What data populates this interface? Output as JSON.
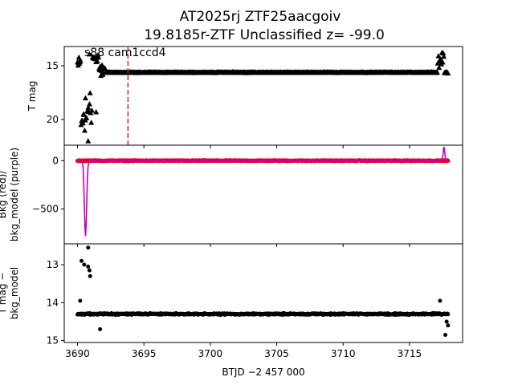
{
  "chart_data": {
    "type": "scatter",
    "title_line1": "AT2025rj  ZTF25aacgoiv",
    "title_line2": "19.8185r-ZTF Unclassified z= -99.0",
    "xlabel": "BTJD −2 457 000",
    "xlim": [
      3689.0,
      3719.0
    ],
    "xticks": [
      3690,
      3695,
      3700,
      3705,
      3710,
      3715
    ],
    "xtick_labels": [
      "3690",
      "3695",
      "3700",
      "3705",
      "3710",
      "3715"
    ],
    "vline_x": 3693.8,
    "vline_color": "#d62728",
    "panels": [
      {
        "id": "mag",
        "ylabel": "T mag",
        "ylim": [
          22.4,
          13.2
        ],
        "yticks": [
          15,
          20
        ],
        "ytick_labels": [
          "15",
          "20"
        ],
        "annotation": "s88 cam1ccd4",
        "series": [
          {
            "marker": "triangle",
            "color": "#000000",
            "x_start": 3690.0,
            "x_end": 3717.9,
            "n": 620,
            "noise": 0.05,
            "segments": [
              {
                "x0": 3690.0,
                "x1": 3690.25,
                "y": 14.6,
                "spread": 0.6
              },
              {
                "x0": 3690.25,
                "x1": 3690.6,
                "y": 20.0,
                "spread": 2.2
              },
              {
                "x0": 3690.6,
                "x1": 3691.1,
                "y": 19.5,
                "spread": 3.2
              },
              {
                "x0": 3691.1,
                "x1": 3691.6,
                "y": 14.2,
                "spread": 0.8
              },
              {
                "x0": 3691.6,
                "x1": 3692.1,
                "y": 15.3,
                "spread": 0.8
              },
              {
                "x0": 3692.1,
                "x1": 3717.1,
                "y": 15.6,
                "spread": 0.05
              },
              {
                "x0": 3717.1,
                "x1": 3717.6,
                "y": 14.3,
                "spread": 1.4
              },
              {
                "x0": 3717.6,
                "x1": 3717.9,
                "y": 15.6,
                "spread": 0.1
              }
            ]
          }
        ],
        "extra_points": [
          {
            "x": 3690.8,
            "y": 22.0
          },
          {
            "x": 3690.9,
            "y": 13.9
          },
          {
            "x": 3691.4,
            "y": 19.3
          },
          {
            "x": 3690.6,
            "y": 18.0
          },
          {
            "x": 3691.9,
            "y": 15.8
          },
          {
            "x": 3690.1,
            "y": 14.2
          }
        ]
      },
      {
        "id": "bkg",
        "ylabel_line1": "Bkg (red)/",
        "ylabel_line2": "bkg_model (purple)",
        "ylim": [
          -860,
          160
        ],
        "yticks": [
          0,
          -500
        ],
        "ytick_labels": [
          "0",
          "−500"
        ],
        "red_color": "#e8001c",
        "purple_color": "#bf00bf",
        "red_level": 0,
        "purple_dip": {
          "x": 3690.6,
          "y": -780
        },
        "purple_bump": {
          "x": 3717.6,
          "y": 150
        }
      },
      {
        "id": "diff",
        "ylabel_line1": "T mag −",
        "ylabel_line2": "bkg_model",
        "ylim": [
          15.05,
          12.45
        ],
        "yticks": [
          13,
          14,
          15
        ],
        "ytick_labels": [
          "13",
          "14",
          "15"
        ],
        "level": 14.3,
        "outliers": [
          {
            "x": 3690.3,
            "y": 12.9
          },
          {
            "x": 3690.5,
            "y": 13.0
          },
          {
            "x": 3690.8,
            "y": 12.55
          },
          {
            "x": 3690.9,
            "y": 13.15
          },
          {
            "x": 3690.95,
            "y": 13.3
          },
          {
            "x": 3690.8,
            "y": 13.05
          },
          {
            "x": 3690.2,
            "y": 13.95
          },
          {
            "x": 3691.7,
            "y": 14.7
          },
          {
            "x": 3717.3,
            "y": 13.95
          },
          {
            "x": 3717.9,
            "y": 14.6
          },
          {
            "x": 3717.7,
            "y": 14.85
          },
          {
            "x": 3717.8,
            "y": 14.5
          }
        ]
      }
    ]
  }
}
